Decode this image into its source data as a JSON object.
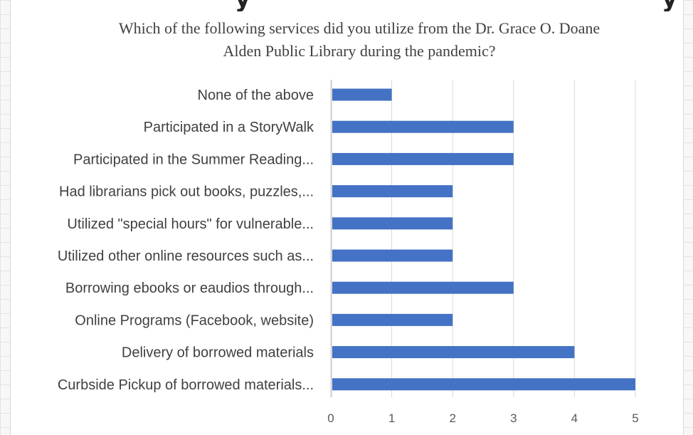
{
  "chart_data": {
    "type": "bar",
    "orientation": "horizontal",
    "title_lines": [
      "Which of the following services did you utilize from the Dr. Grace O. Doane",
      "Alden Public Library during the pandemic?"
    ],
    "categories": [
      "None of the above",
      "Participated in a StoryWalk",
      "Participated in the Summer Reading...",
      "Had librarians pick out books, puzzles,...",
      "Utilized \"special hours\" for vulnerable...",
      "Utilized other online resources such as...",
      "Borrowing ebooks or eaudios through...",
      "Online Programs (Facebook, website)",
      "Delivery of borrowed materials",
      "Curbside Pickup of borrowed materials..."
    ],
    "values": [
      1,
      3,
      3,
      2,
      2,
      2,
      3,
      2,
      4,
      5
    ],
    "xlim": [
      0,
      5
    ],
    "x_ticks": [
      "0",
      "1",
      "2",
      "3",
      "4",
      "5"
    ],
    "grid": "vertical",
    "legend": "none",
    "bar_color": "#4472c4",
    "grid_color": "#d9d9d9"
  }
}
